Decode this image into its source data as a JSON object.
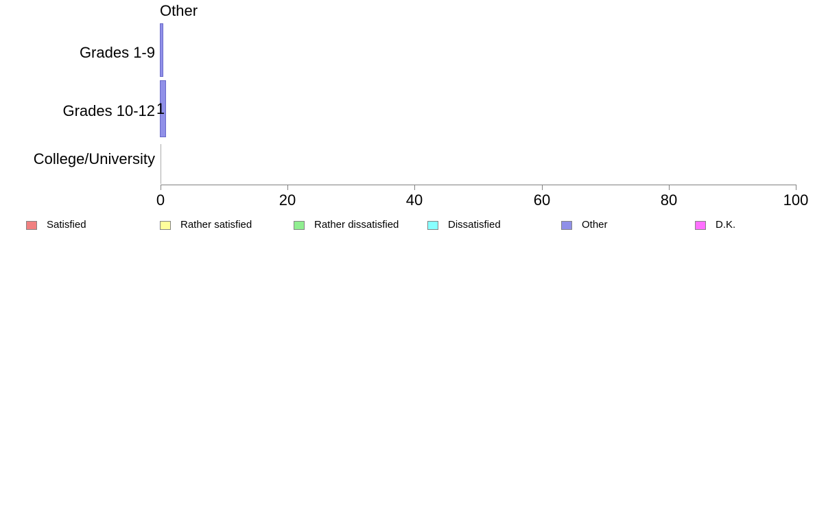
{
  "title": "Other",
  "chart_data": {
    "type": "bar",
    "orientation": "horizontal",
    "stacked": true,
    "title": "Other",
    "categories": [
      "Grades 1-9",
      "Grades 10-12",
      "College/University"
    ],
    "series": [
      {
        "name": "Satisfied",
        "color": "#F08080",
        "border": "#848484",
        "values": [
          0,
          0,
          0
        ]
      },
      {
        "name": "Rather satisfied",
        "color": "#FFFF9C",
        "border": "#848484",
        "values": [
          0,
          0,
          0
        ]
      },
      {
        "name": "Rather dissatisfied",
        "color": "#90EE90",
        "border": "#848484",
        "values": [
          0,
          0,
          0
        ]
      },
      {
        "name": "Dissatisfied",
        "color": "#87FFFF",
        "border": "#848484",
        "values": [
          0,
          0,
          0
        ]
      },
      {
        "name": "Other",
        "color": "#9090E8",
        "border": "#6868C8",
        "values": [
          0.5,
          1,
          0
        ]
      },
      {
        "name": "D.K.",
        "color": "#FF70FF",
        "border": "#848484",
        "values": [
          0,
          0,
          0
        ]
      }
    ],
    "bar_labels": [
      "",
      "1",
      ""
    ],
    "xlabel": "",
    "ylabel": "",
    "xlim": [
      0,
      100
    ],
    "xticks": [
      0,
      20,
      40,
      60,
      80,
      100
    ],
    "grid": false,
    "legend_position": "bottom"
  },
  "colors": {
    "axis": "#808080",
    "zero_bar": "#aaaaaa",
    "text": "#000000",
    "background": "#ffffff"
  }
}
